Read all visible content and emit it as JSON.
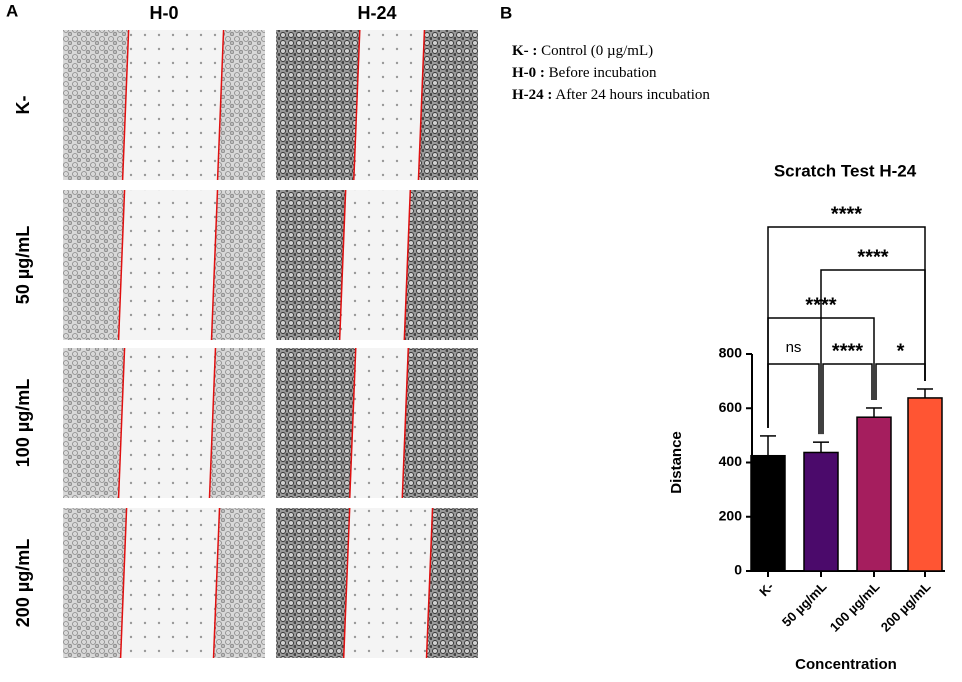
{
  "panel_a": {
    "label": "A",
    "columns": [
      "H-0",
      "H-24"
    ],
    "rows": [
      "K-",
      "50 µg/mL",
      "100 µg/mL",
      "200 µg/mL"
    ]
  },
  "panel_b": {
    "label": "B",
    "legend": [
      {
        "key": "K- :",
        "text": "Control (0 µg/mL)"
      },
      {
        "key": "H-0 :",
        "text": "Before incubation"
      },
      {
        "key": "H-24 :",
        "text": "After 24 hours incubation"
      }
    ]
  },
  "chart_data": {
    "type": "bar",
    "title": "Scratch Test H-24",
    "x_label": "Concentration",
    "y_label": "Distance",
    "categories": [
      "K-",
      "50 µg/mL",
      "100 µg/mL",
      "200 µg/mL"
    ],
    "values": [
      425,
      437,
      567,
      638
    ],
    "errors": [
      73,
      38,
      34,
      33
    ],
    "colors": [
      "#000000",
      "#4b0a6b",
      "#a51e5e",
      "#ff5533"
    ],
    "ylim": [
      0,
      800
    ],
    "yticks": [
      0,
      200,
      400,
      600,
      800
    ],
    "comparisons": [
      {
        "from": 0,
        "to": 3,
        "label": "****"
      },
      {
        "from": 1,
        "to": 3,
        "label": "****"
      },
      {
        "from": 0,
        "to": 2,
        "label": "****"
      },
      {
        "from": 0,
        "to": 1,
        "label": "ns"
      },
      {
        "from": 1,
        "to": 2,
        "label": "****"
      },
      {
        "from": 2,
        "to": 3,
        "label": "*"
      }
    ]
  }
}
